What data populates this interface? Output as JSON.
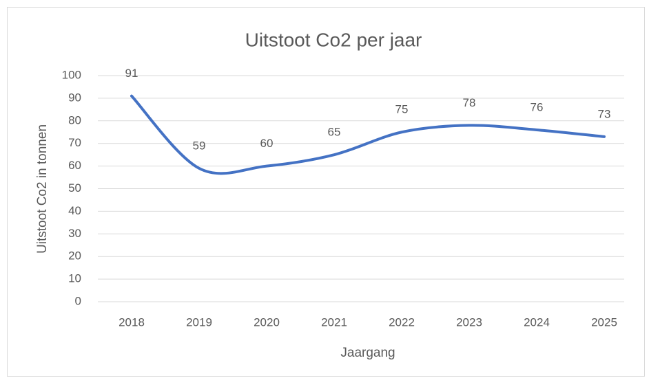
{
  "chart_data": {
    "type": "line",
    "title": "Uitstoot Co2 per jaar",
    "x_label": "Jaargang",
    "y_label": "Uitstoot Co2 in tonnen",
    "categories": [
      "2018",
      "2019",
      "2020",
      "2021",
      "2022",
      "2023",
      "2024",
      "2025"
    ],
    "values": [
      91,
      59,
      60,
      65,
      75,
      78,
      76,
      73
    ],
    "color": "#4472c4",
    "smooth": true,
    "data_labels": true,
    "ylim": [
      0,
      100
    ],
    "yticks": [
      0,
      10,
      20,
      30,
      40,
      50,
      60,
      70,
      80,
      90,
      100
    ],
    "grid": true
  }
}
